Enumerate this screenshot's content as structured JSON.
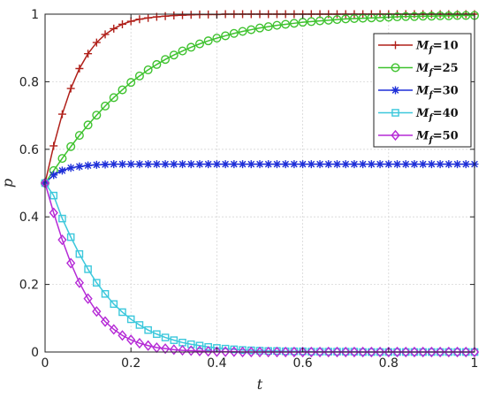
{
  "chart_data": {
    "type": "line",
    "xlabel": "t",
    "ylabel": "p",
    "xlim": [
      0,
      1
    ],
    "ylim": [
      0,
      1
    ],
    "xticks": [
      0,
      0.2,
      0.4,
      0.6,
      0.8,
      1
    ],
    "yticks": [
      0,
      0.2,
      0.4,
      0.6,
      0.8,
      1
    ],
    "x_tick_labels": [
      "0",
      "0.2",
      "0.4",
      "0.6",
      "0.8",
      "1"
    ],
    "y_tick_labels": [
      "0",
      "0.2",
      "0.4",
      "0.6",
      "0.8",
      "1"
    ],
    "grid": true,
    "legend_position": "top-right",
    "x": [
      0,
      0.02,
      0.04,
      0.06,
      0.08,
      0.1,
      0.12,
      0.14,
      0.16,
      0.18,
      0.2,
      0.22,
      0.24,
      0.26,
      0.28,
      0.3,
      0.32,
      0.34,
      0.36,
      0.38,
      0.4,
      0.42,
      0.44,
      0.46,
      0.48,
      0.5,
      0.52,
      0.54,
      0.56,
      0.58,
      0.6,
      0.62,
      0.64,
      0.66,
      0.68,
      0.7,
      0.72,
      0.74,
      0.76,
      0.78,
      0.8,
      0.82,
      0.84,
      0.86,
      0.88,
      0.9,
      0.92,
      0.94,
      0.96,
      0.98,
      1.0
    ],
    "series": [
      {
        "name_prefix": "M",
        "name_sub": "f",
        "name_suffix": "=10",
        "color": "#b0201a",
        "marker": "plus",
        "values": [
          0.5,
          0.61,
          0.704,
          0.78,
          0.839,
          0.883,
          0.916,
          0.94,
          0.957,
          0.97,
          0.979,
          0.985,
          0.989,
          0.992,
          0.994,
          0.996,
          0.997,
          0.998,
          0.999,
          0.999,
          0.999,
          1.0,
          1.0,
          1.0,
          1.0,
          1.0,
          1.0,
          1.0,
          1.0,
          1.0,
          1.0,
          1.0,
          1.0,
          1.0,
          1.0,
          1.0,
          1.0,
          1.0,
          1.0,
          1.0,
          1.0,
          1.0,
          1.0,
          1.0,
          1.0,
          1.0,
          1.0,
          1.0,
          1.0,
          1.0,
          1.0
        ]
      },
      {
        "name_prefix": "M",
        "name_sub": "f",
        "name_suffix": "=25",
        "color": "#3ec22e",
        "marker": "circle",
        "values": [
          0.5,
          0.537,
          0.573,
          0.608,
          0.641,
          0.672,
          0.701,
          0.728,
          0.753,
          0.776,
          0.798,
          0.817,
          0.835,
          0.851,
          0.866,
          0.879,
          0.891,
          0.902,
          0.912,
          0.921,
          0.929,
          0.936,
          0.943,
          0.949,
          0.954,
          0.959,
          0.963,
          0.967,
          0.97,
          0.973,
          0.976,
          0.978,
          0.98,
          0.982,
          0.984,
          0.986,
          0.987,
          0.988,
          0.989,
          0.99,
          0.991,
          0.992,
          0.993,
          0.993,
          0.994,
          0.994,
          0.995,
          0.995,
          0.996,
          0.996,
          0.996
        ]
      },
      {
        "name_prefix": "M",
        "name_sub": "f",
        "name_suffix": "=30",
        "color": "#1e2fd8",
        "marker": "star",
        "values": [
          0.5,
          0.524,
          0.537,
          0.545,
          0.549,
          0.552,
          0.554,
          0.555,
          0.556,
          0.556,
          0.556,
          0.556,
          0.556,
          0.556,
          0.556,
          0.556,
          0.556,
          0.556,
          0.556,
          0.556,
          0.556,
          0.556,
          0.556,
          0.556,
          0.556,
          0.556,
          0.556,
          0.556,
          0.556,
          0.556,
          0.556,
          0.556,
          0.556,
          0.556,
          0.556,
          0.556,
          0.556,
          0.556,
          0.556,
          0.556,
          0.556,
          0.556,
          0.556,
          0.556,
          0.556,
          0.556,
          0.556,
          0.556,
          0.556,
          0.556,
          0.556
        ]
      },
      {
        "name_prefix": "M",
        "name_sub": "f",
        "name_suffix": "=40",
        "color": "#3cc8dc",
        "marker": "square",
        "values": [
          0.5,
          0.463,
          0.395,
          0.34,
          0.29,
          0.245,
          0.205,
          0.172,
          0.142,
          0.118,
          0.097,
          0.08,
          0.065,
          0.053,
          0.043,
          0.035,
          0.028,
          0.023,
          0.019,
          0.015,
          0.012,
          0.01,
          0.008,
          0.006,
          0.005,
          0.004,
          0.003,
          0.003,
          0.002,
          0.002,
          0.002,
          0.001,
          0.001,
          0.001,
          0.001,
          0.001,
          0.001,
          0.0,
          0.0,
          0.0,
          0.0,
          0.0,
          0.0,
          0.0,
          0.0,
          0.0,
          0.0,
          0.0,
          0.0,
          0.0,
          0.0
        ]
      },
      {
        "name_prefix": "M",
        "name_sub": "f",
        "name_suffix": "=50",
        "color": "#b52ad6",
        "marker": "diamond",
        "values": [
          0.5,
          0.412,
          0.332,
          0.263,
          0.205,
          0.158,
          0.12,
          0.09,
          0.067,
          0.049,
          0.036,
          0.026,
          0.019,
          0.013,
          0.01,
          0.007,
          0.005,
          0.004,
          0.003,
          0.002,
          0.001,
          0.001,
          0.001,
          0.0,
          0.0,
          0.0,
          0.0,
          0.0,
          0.0,
          0.0,
          0.0,
          0.0,
          0.0,
          0.0,
          0.0,
          0.0,
          0.0,
          0.0,
          0.0,
          0.0,
          0.0,
          0.0,
          0.0,
          0.0,
          0.0,
          0.0,
          0.0,
          0.0,
          0.0,
          0.0,
          0.0
        ]
      }
    ]
  }
}
